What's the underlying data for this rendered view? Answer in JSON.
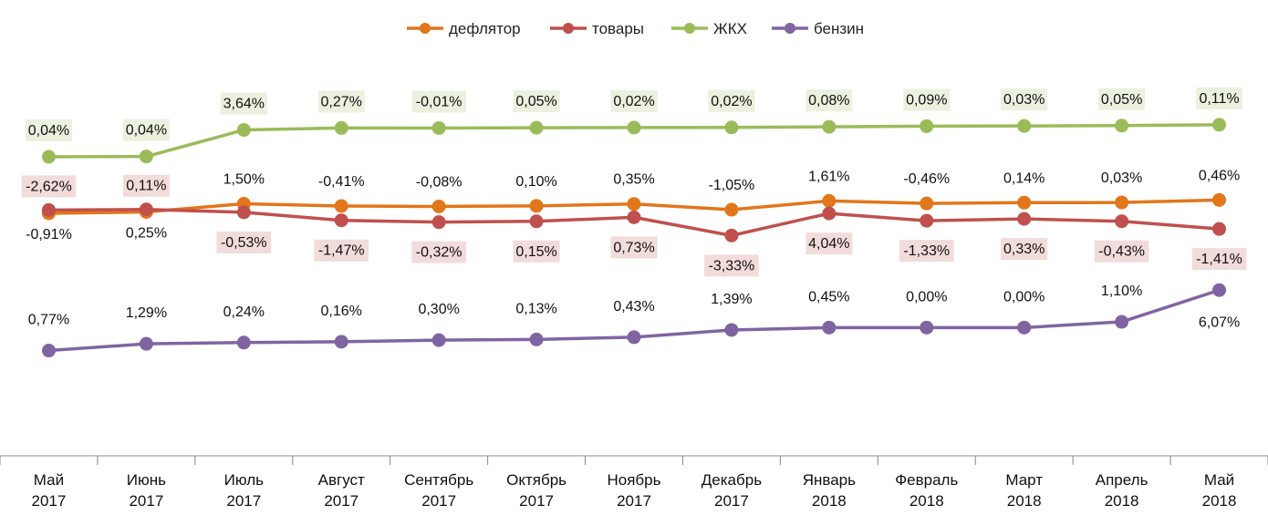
{
  "chart_data": {
    "type": "line",
    "title": "",
    "xlabel": "",
    "ylabel": "",
    "legend_position": "top-center",
    "grid": false,
    "categories": [
      [
        "Май",
        "2017"
      ],
      [
        "Июнь",
        "2017"
      ],
      [
        "Июль",
        "2017"
      ],
      [
        "Август",
        "2017"
      ],
      [
        "Сентябрь",
        "2017"
      ],
      [
        "Октябрь",
        "2017"
      ],
      [
        "Ноябрь",
        "2017"
      ],
      [
        "Декабрь",
        "2017"
      ],
      [
        "Январь",
        "2018"
      ],
      [
        "Февраль",
        "2018"
      ],
      [
        "Март",
        "2018"
      ],
      [
        "Апрель",
        "2018"
      ],
      [
        "Май",
        "2018"
      ]
    ],
    "series": [
      {
        "key": "deflator",
        "name": "дефлятор",
        "color": "#e2761b",
        "label_bg": "",
        "values": [
          -0.91,
          0.25,
          1.5,
          -0.41,
          -0.08,
          0.1,
          0.35,
          -1.05,
          1.61,
          -0.46,
          0.14,
          0.03,
          0.46
        ],
        "labels": [
          "-0,91%",
          "0,25%",
          "1,50%",
          "-0,41%",
          "-0,08%",
          "0,10%",
          "0,35%",
          "-1,05%",
          "1,61%",
          "-0,46%",
          "0,14%",
          "0,03%",
          "0,46%"
        ],
        "label_side": [
          "below",
          "below",
          "above",
          "above",
          "above",
          "above",
          "above",
          "above",
          "above",
          "above",
          "above",
          "above",
          "above"
        ],
        "index_level": [
          100,
          100.25,
          101.75,
          101.34,
          101.26,
          101.36,
          101.71,
          100.66,
          102.27,
          101.81,
          101.95,
          101.98,
          102.44
        ]
      },
      {
        "key": "goods",
        "name": "товары",
        "color": "#c0504d",
        "label_bg": "#f2dcdb",
        "values": [
          -2.62,
          0.11,
          -0.53,
          -1.47,
          -0.32,
          0.15,
          0.73,
          -3.33,
          4.04,
          -1.33,
          0.33,
          -0.43,
          -1.41
        ],
        "labels": [
          "-2,62%",
          "0,11%",
          "-0,53%",
          "-1,47%",
          "-0,32%",
          "0,15%",
          "0,73%",
          "-3,33%",
          "4,04%",
          "-1,33%",
          "0,33%",
          "-0,43%",
          "-1,41%"
        ],
        "label_side": [
          "above",
          "above",
          "below",
          "below",
          "below",
          "below",
          "below",
          "below",
          "below",
          "below",
          "below",
          "below",
          "below"
        ],
        "index_level": [
          100.6,
          100.71,
          100.18,
          98.71,
          98.39,
          98.54,
          99.27,
          95.94,
          99.98,
          98.65,
          98.98,
          98.55,
          97.14
        ]
      },
      {
        "key": "housing",
        "name": "ЖКХ",
        "color": "#9bbb59",
        "label_bg": "#ebf1de",
        "values": [
          0.04,
          0.04,
          3.64,
          0.27,
          -0.01,
          0.05,
          0.02,
          0.02,
          0.08,
          0.09,
          0.03,
          0.05,
          0.11
        ],
        "labels": [
          "0,04%",
          "0,04%",
          "3,64%",
          "0,27%",
          "-0,01%",
          "0,05%",
          "0,02%",
          "0,02%",
          "0,08%",
          "0,09%",
          "0,03%",
          "0,05%",
          "0,11%"
        ],
        "label_side": [
          "above",
          "above",
          "above",
          "above",
          "above",
          "above",
          "above",
          "above",
          "above",
          "above",
          "above",
          "above",
          "above"
        ],
        "index_level": [
          160.0,
          160.04,
          163.68,
          163.95,
          163.94,
          163.99,
          164.01,
          164.03,
          164.11,
          164.2,
          164.23,
          164.28,
          164.39
        ]
      },
      {
        "key": "gasoline",
        "name": "бензин",
        "color": "#8064a2",
        "label_bg": "",
        "values": [
          0.77,
          1.29,
          0.24,
          0.16,
          0.3,
          0.13,
          0.43,
          1.39,
          0.45,
          0.0,
          0.0,
          1.1,
          6.07
        ],
        "labels": [
          "0,77%",
          "1,29%",
          "0,24%",
          "0,16%",
          "0,30%",
          "0,13%",
          "0,43%",
          "1,39%",
          "0,45%",
          "0,00%",
          "0,00%",
          "1,10%",
          "6,07%"
        ],
        "label_side": [
          "above",
          "above",
          "above",
          "above",
          "above",
          "above",
          "above",
          "above",
          "above",
          "above",
          "above",
          "above",
          "below"
        ],
        "index_level": [
          50.0,
          51.29,
          51.53,
          51.69,
          51.99,
          52.12,
          52.55,
          53.94,
          54.39,
          54.39,
          54.39,
          55.49,
          61.56
        ]
      }
    ]
  }
}
